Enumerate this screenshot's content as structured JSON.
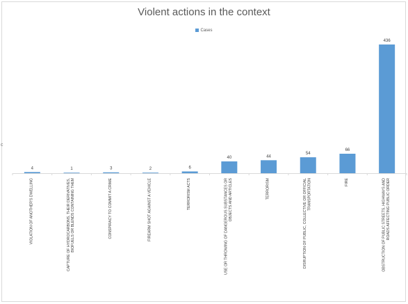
{
  "chart_data": {
    "type": "bar",
    "title": "Violent actions in the context",
    "xlabel": "",
    "ylabel": "",
    "legend_position": "top",
    "grid": false,
    "ylim": [
      0,
      450
    ],
    "categories": [
      "VIOLATION OF ANOTHER'S DWELLING",
      "CAPTURE OF HYDROCARBONS, THEIR DERIVATIVES, BIOFUELS OR BLENDS CONTAINING THEM",
      "CONSPIRACY TO COMMIT A CRIME",
      "FIREARM SHOT AGAINST A VEHICLE",
      "TERRORISM ACTS",
      "USE OR THROWING OF DANGEROUS SUBSTANCES OR OBJECTS AND ARTICLES",
      "TERRORISM",
      "DISRUPTION OF PUBLIC, COLLECTIVE OR OFFICIAL TRANSPORTATION",
      "FIRE",
      "OBSTRUCTION OF PUBLIC STREETS, HIGHWAYS AND ROADS AFFECTING PUBLIC ORDER"
    ],
    "series": [
      {
        "name": "Cases",
        "color": "#5b9bd5",
        "values": [
          4,
          1,
          3,
          2,
          6,
          40,
          44,
          54,
          66,
          436
        ]
      }
    ]
  },
  "left_glyph": "c"
}
